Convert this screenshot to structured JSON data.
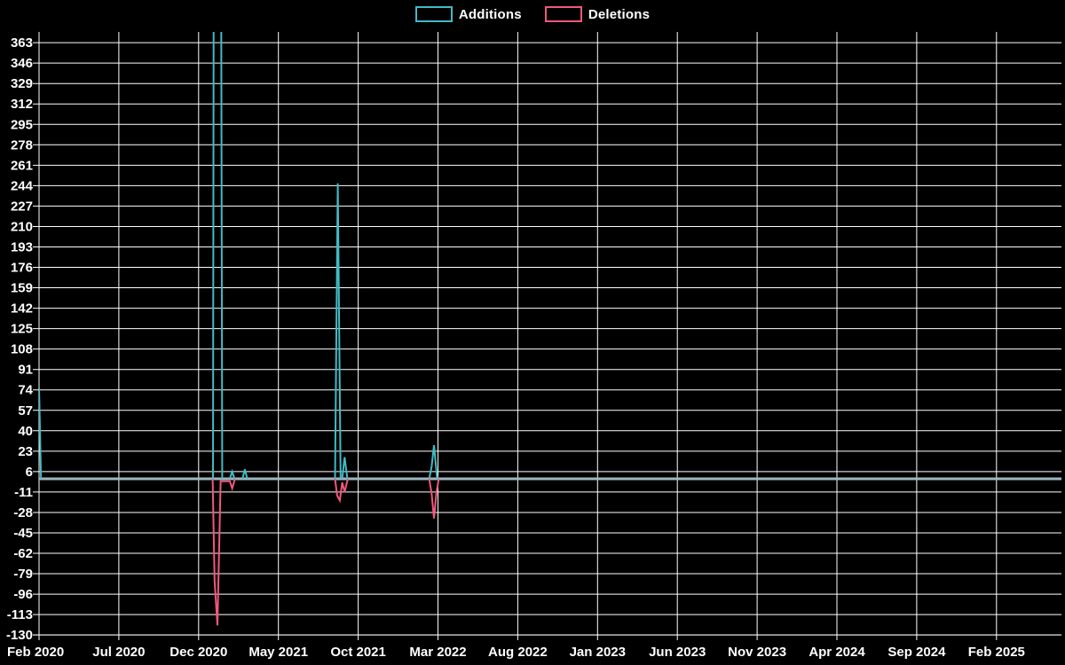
{
  "legend": {
    "items": [
      {
        "label": "Additions",
        "color": "#42bac4"
      },
      {
        "label": "Deletions",
        "color": "#f0587c"
      }
    ]
  },
  "chart_data": {
    "type": "line",
    "title": "",
    "background": "#000000",
    "grid_color": "#ffffff",
    "text_color": "#ffffff",
    "zero_line_color": "#9eb7c1",
    "legend_position": "top-center",
    "grid": true,
    "x_axis": {
      "unit": "months since Feb 2020",
      "tick_labels": [
        "Feb 2020",
        "Jul 2020",
        "Dec 2020",
        "May 2021",
        "Oct 2021",
        "Mar 2022",
        "Aug 2022",
        "Jan 2023",
        "Jun 2023",
        "Nov 2023",
        "Apr 2024",
        "Sep 2024",
        "Feb 2025"
      ],
      "tick_positions": [
        0,
        5,
        10,
        15,
        20,
        25,
        30,
        35,
        40,
        45,
        50,
        55,
        60
      ],
      "range": [
        0,
        64.1
      ]
    },
    "y_axis": {
      "ticks": [
        363,
        346,
        329,
        312,
        295,
        278,
        261,
        244,
        227,
        210,
        193,
        176,
        159,
        142,
        125,
        108,
        91,
        74,
        57,
        40,
        23,
        6,
        -11,
        -28,
        -45,
        -62,
        -79,
        -96,
        -113,
        -130
      ],
      "range": [
        -134,
        372
      ]
    },
    "series": [
      {
        "name": "Additions",
        "color": "#42bac4",
        "points": [
          [
            0,
            76
          ],
          [
            0.12,
            0
          ],
          [
            10.9,
            0
          ],
          [
            11.05,
            1400
          ],
          [
            11.32,
            1000
          ],
          [
            11.48,
            0
          ],
          [
            11.95,
            0
          ],
          [
            12.1,
            6
          ],
          [
            12.25,
            0
          ],
          [
            12.75,
            0
          ],
          [
            12.9,
            8
          ],
          [
            13.05,
            0
          ],
          [
            18.55,
            0
          ],
          [
            18.72,
            246
          ],
          [
            18.9,
            0
          ],
          [
            19.0,
            0
          ],
          [
            19.15,
            18
          ],
          [
            19.32,
            0
          ],
          [
            24.45,
            0
          ],
          [
            24.6,
            10
          ],
          [
            24.75,
            28
          ],
          [
            24.95,
            0
          ],
          [
            64.1,
            0
          ]
        ]
      },
      {
        "name": "Deletions",
        "color": "#f0587c",
        "points": [
          [
            0,
            0
          ],
          [
            10.88,
            0
          ],
          [
            11.0,
            -85
          ],
          [
            11.18,
            -122
          ],
          [
            11.38,
            -2
          ],
          [
            11.95,
            -2
          ],
          [
            12.1,
            -8
          ],
          [
            12.28,
            0
          ],
          [
            18.55,
            0
          ],
          [
            18.68,
            -14
          ],
          [
            18.85,
            -18
          ],
          [
            19.0,
            -3
          ],
          [
            19.15,
            -11
          ],
          [
            19.35,
            0
          ],
          [
            24.45,
            0
          ],
          [
            24.6,
            -12
          ],
          [
            24.75,
            -33
          ],
          [
            24.9,
            -12
          ],
          [
            25.05,
            0
          ],
          [
            64.1,
            0
          ]
        ]
      }
    ],
    "notes": "Additions spike around Dec 2020 - Jan 2021 exceeds the visible axis maximum and is clipped at the top of the plot"
  }
}
